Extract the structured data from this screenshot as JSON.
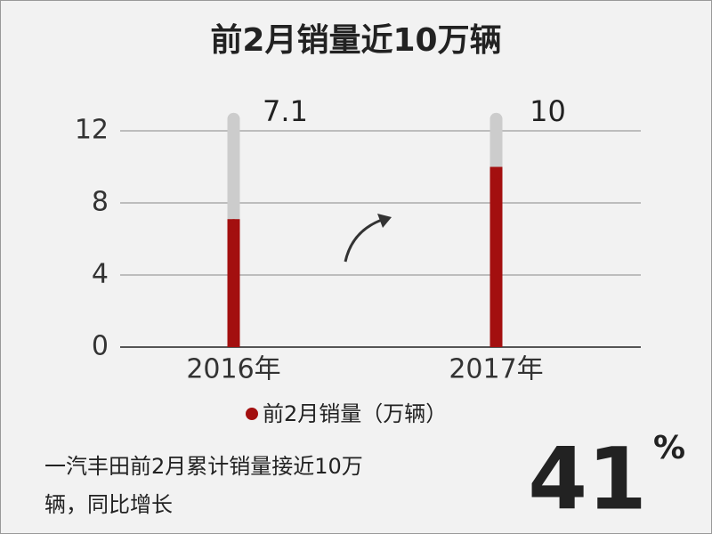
{
  "chart_data": {
    "type": "bar",
    "title": "前2月销量近10万辆",
    "categories": [
      "2016年",
      "2017年"
    ],
    "series": [
      {
        "name": "前2月销量（万辆）",
        "color": "#a30f0f",
        "values": [
          7.1,
          10
        ]
      }
    ],
    "track_color": "#cccccc",
    "ylim": [
      0,
      13
    ],
    "yticks": [
      0,
      4,
      8,
      12
    ],
    "grid": true,
    "legend": "bottom",
    "note": [
      "一汽丰田前2月累计销量接近10万",
      "辆，同比增长"
    ],
    "highlight": "41",
    "highlight_suffix": "%"
  }
}
